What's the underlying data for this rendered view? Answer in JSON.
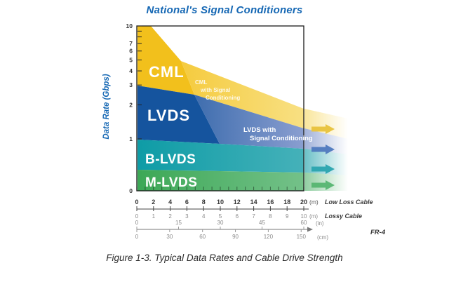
{
  "title": "National's Signal Conditioners",
  "caption": "Figure 1-3. Typical Data Rates and Cable Drive Strength",
  "chart_data": {
    "type": "area",
    "title": "National's Signal Conditioners",
    "ylabel": "Data Rate (Gbps)",
    "y_axis": {
      "scale": "log",
      "tick_labels": [
        "10",
        "7",
        "6",
        "5",
        "4",
        "3",
        "2",
        "1",
        "0"
      ],
      "range_gbps": [
        0,
        10
      ]
    },
    "x_axes": [
      {
        "name": "Low Loss Cable",
        "unit": "(m)",
        "tick_labels": [
          "0",
          "2",
          "4",
          "6",
          "8",
          "10",
          "12",
          "14",
          "16",
          "18",
          "20"
        ],
        "max": 20
      },
      {
        "name": "Lossy Cable",
        "unit": "(m)",
        "tick_labels": [
          "0",
          "1",
          "2",
          "3",
          "4",
          "5",
          "6",
          "7",
          "8",
          "9",
          "10"
        ],
        "max": 10
      },
      {
        "name": "FR-4",
        "unit": "(in)",
        "tick_labels": [
          "0",
          "15",
          "30",
          "45",
          "60"
        ],
        "max": 60
      },
      {
        "name": "FR-4",
        "unit": "(cm)",
        "tick_labels": [
          "0",
          "30",
          "60",
          "90",
          "120",
          "150"
        ],
        "max": 152.4
      }
    ],
    "bands": [
      {
        "label": "CML",
        "color": "#F2C01C",
        "gbps_at_0m": [
          3,
          10
        ],
        "boundary_m_gbps": [
          [
            0,
            10
          ],
          [
            1.7,
            10
          ],
          [
            5.3,
            4.9
          ],
          [
            6.9,
            2.5
          ]
        ]
      },
      {
        "label": "CML with Signal Conditioning",
        "lines": [
          "CML",
          "with Signal",
          "Conditioning"
        ],
        "color": "#F5CF4A",
        "top_boundary_m_gbps": [
          [
            5.3,
            4.9
          ],
          [
            20,
            1.85
          ]
        ]
      },
      {
        "label": "LVDS",
        "color": "#15549E",
        "gbps_at_0m": [
          1,
          3
        ],
        "boundary_m_gbps": [
          [
            0,
            3
          ],
          [
            6.9,
            2.5
          ],
          [
            9.9,
            1.0
          ]
        ]
      },
      {
        "label": "LVDS with Signal Conditioning",
        "lines": [
          "LVDS with",
          "Signal Conditioning"
        ],
        "color": "#4674B4",
        "top_boundary_m_gbps": [
          [
            6.9,
            2.5
          ],
          [
            20,
            1.24
          ]
        ]
      },
      {
        "label": "B-LVDS",
        "color": "#119DA7",
        "gbps_at_0m": [
          0.5,
          1
        ],
        "top_boundary_m_gbps": [
          [
            0,
            1
          ],
          [
            20,
            0.83
          ]
        ]
      },
      {
        "label": "M-LVDS",
        "color": "#3FAA59",
        "gbps_at_0m": [
          0,
          0.5
        ],
        "top_boundary_m_gbps": [
          [
            0,
            0.53
          ],
          [
            20,
            0.5
          ]
        ]
      }
    ],
    "extension_arrows": [
      "cml-extend",
      "lvds-extend",
      "blvds-extend",
      "mlvds-extend"
    ],
    "colors": {
      "title_blue": "#1668B4",
      "cml_gold": "#F2C01C",
      "cml_sc_yellow": "#F5CF4A",
      "lvds_blue": "#15549E",
      "lvds_sc_blue": "#4674B4",
      "blvds_teal": "#119DA7",
      "mlvds_green": "#3FAA59",
      "axis_dark": "#333333",
      "axis_light": "#8a8a8a"
    }
  }
}
